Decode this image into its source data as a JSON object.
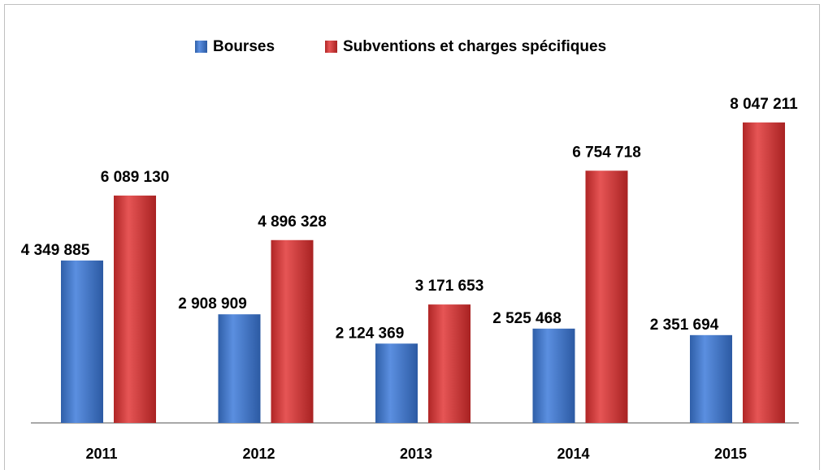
{
  "chart_data": {
    "type": "bar",
    "categories": [
      "2011",
      "2012",
      "2013",
      "2014",
      "2015"
    ],
    "series": [
      {
        "name": "Bourses",
        "color": "#3d72c6",
        "values": [
          4349885,
          2908909,
          2124369,
          2525468,
          2351694
        ],
        "value_labels": [
          "4 349 885",
          "2 908 909",
          "2 124 369",
          "2 525 468",
          "2 351 694"
        ]
      },
      {
        "name": "Subventions et charges spécifiques",
        "color": "#d23a3a",
        "values": [
          6089130,
          4896328,
          3171653,
          6754718,
          8047211
        ],
        "value_labels": [
          "6 089 130",
          "4 896 328",
          "3 171 653",
          "6 754 718",
          "8 047 211"
        ]
      }
    ],
    "ylim": [
      0,
      9000000
    ],
    "legend": "top"
  }
}
